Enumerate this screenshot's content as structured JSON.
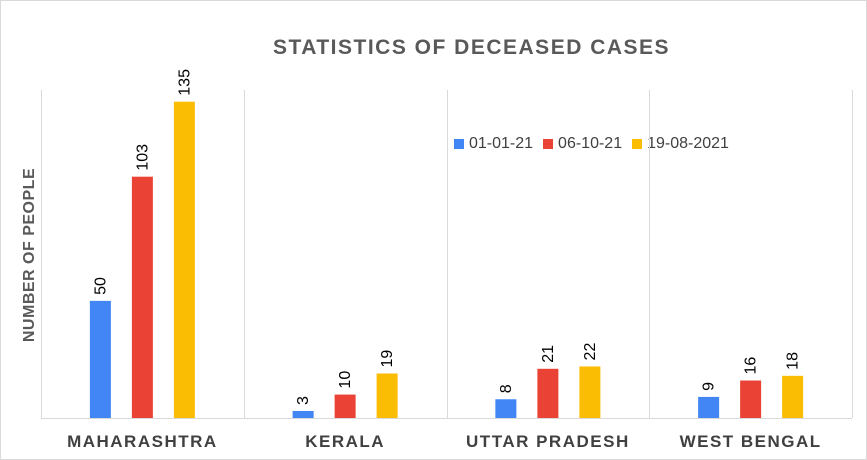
{
  "chart_data": {
    "type": "bar",
    "title": "STATISTICS OF DECEASED CASES",
    "xlabel": "",
    "ylabel": "NUMBER OF PEOPLE",
    "categories": [
      "MAHARASHTRA",
      "KERALA",
      "UTTAR PRADESH",
      "WEST BENGAL"
    ],
    "series": [
      {
        "name": "01-01-21",
        "values": [
          50,
          3,
          8,
          9
        ],
        "color": "#4285f4"
      },
      {
        "name": "06-10-21",
        "values": [
          103,
          10,
          21,
          16
        ],
        "color": "#ea4335"
      },
      {
        "name": "19-08-2021",
        "values": [
          135,
          19,
          22,
          18
        ],
        "color": "#fbbc04"
      }
    ],
    "ylim": [
      0,
      140
    ],
    "grid": false,
    "category_separators": true,
    "data_labels": true,
    "legend_position": "top-right"
  }
}
